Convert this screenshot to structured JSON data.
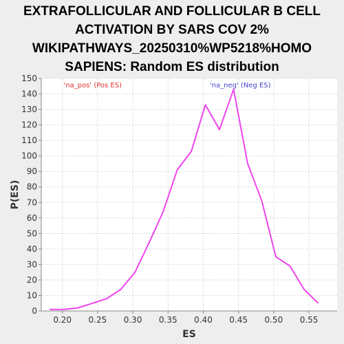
{
  "chart_data": {
    "type": "line",
    "title": [
      "EXTRAFOLLICULAR AND FOLLICULAR B CELL",
      "ACTIVATION BY SARS COV 2%",
      "WIKIPATHWAYS_20250310%WP5218%HOMO",
      "SAPIENS: Random ES distribution"
    ],
    "xlabel": "ES",
    "ylabel": "P(ES)",
    "xlim": [
      0.17,
      0.59
    ],
    "ylim": [
      0,
      150
    ],
    "xticks": [
      "0.20",
      "0.25",
      "0.30",
      "0.35",
      "0.40",
      "0.45",
      "0.50",
      "0.55"
    ],
    "yticks": [
      "0",
      "10",
      "20",
      "30",
      "40",
      "50",
      "60",
      "70",
      "80",
      "90",
      "100",
      "110",
      "120",
      "130",
      "140",
      "150"
    ],
    "grid": true,
    "annotations": [
      {
        "text": "'na_pos' (Pos ES)",
        "color": "#e03030",
        "x": 0.243
      },
      {
        "text": "'na_neg' (Neg ES)",
        "color": "#4444cc",
        "x": 0.4525
      }
    ],
    "series": [
      {
        "color": "#ee44ee",
        "x": [
          0.182,
          0.202,
          0.222,
          0.243,
          0.263,
          0.283,
          0.303,
          0.323,
          0.343,
          0.363,
          0.383,
          0.403,
          0.423,
          0.443,
          0.463,
          0.483,
          0.503,
          0.523,
          0.543,
          0.563
        ],
        "y": [
          1,
          1,
          2,
          5,
          8,
          14,
          25,
          44,
          64,
          91,
          103,
          133,
          117,
          143,
          95,
          71,
          35,
          29,
          14,
          5
        ]
      }
    ]
  }
}
